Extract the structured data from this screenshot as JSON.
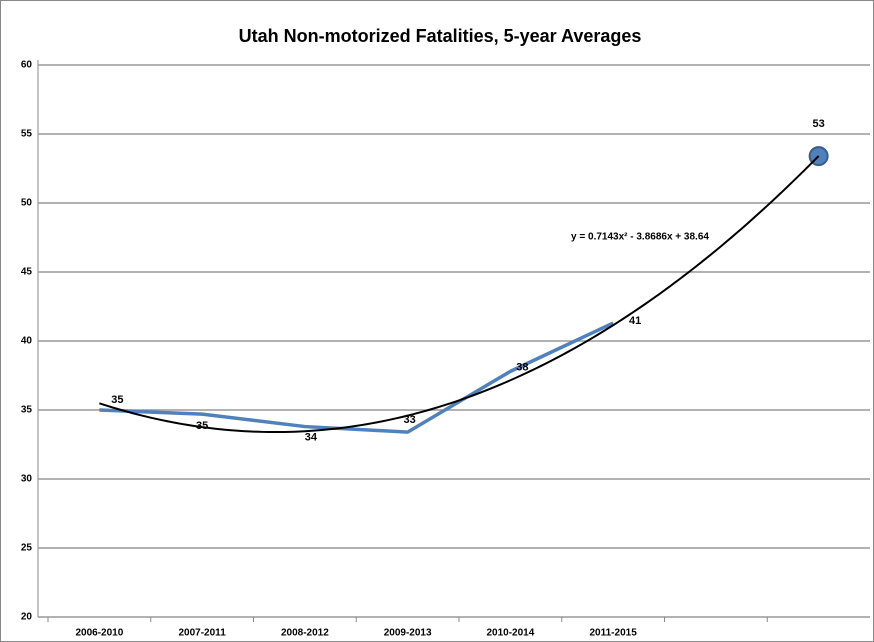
{
  "chart_data": {
    "type": "line",
    "title": "Utah Non-motorized Fatalities, 5-year Averages",
    "categories": [
      "2006-2010",
      "2007-2011",
      "2008-2012",
      "2009-2013",
      "2010-2014",
      "2011-2015",
      null,
      null
    ],
    "series": [
      {
        "color": "#4f81bd",
        "values": [
          35,
          34.7,
          33.8,
          33.4,
          37.8,
          41.3,
          null,
          53.4
        ],
        "value_labels": [
          "35",
          "35",
          "34",
          "33",
          "38",
          "41",
          null,
          "53"
        ]
      }
    ],
    "trendline": {
      "equation": "y = 0.7143x² - 3.8686x + 38.64",
      "coefficients": [
        0.7143,
        -3.8686,
        38.64
      ],
      "color": "#000000"
    },
    "ylim": [
      20,
      60
    ],
    "yticks": [
      20,
      25,
      30,
      35,
      40,
      45,
      50,
      55,
      60
    ],
    "grid": true
  }
}
